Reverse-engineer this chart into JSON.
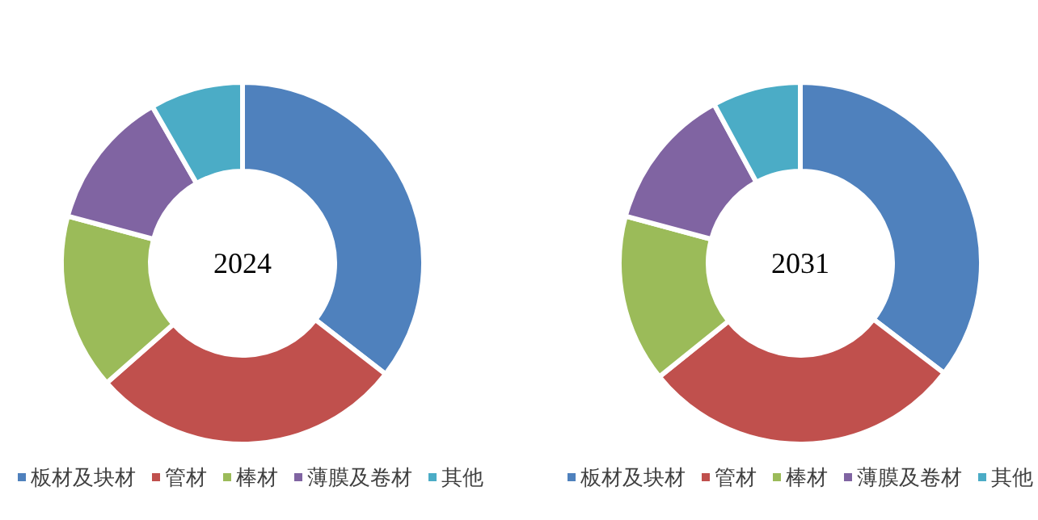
{
  "chart_data": [
    {
      "type": "donut",
      "title": "2024",
      "categories": [
        "板材及块材",
        "管材",
        "棒材",
        "薄膜及卷材",
        "其他"
      ],
      "values": [
        35.5,
        28,
        15.7,
        12.5,
        8.3
      ],
      "colors": [
        "#4f81bd",
        "#c0504d",
        "#9bbb59",
        "#8064a2",
        "#4bacc6"
      ],
      "legend": "bottom"
    },
    {
      "type": "donut",
      "title": "2031",
      "categories": [
        "板材及块材",
        "管材",
        "棒材",
        "薄膜及卷材",
        "其他"
      ],
      "values": [
        35.4,
        28.8,
        15,
        12.9,
        7.9
      ],
      "colors": [
        "#4f81bd",
        "#c0504d",
        "#9bbb59",
        "#8064a2",
        "#4bacc6"
      ],
      "legend": "bottom"
    }
  ]
}
